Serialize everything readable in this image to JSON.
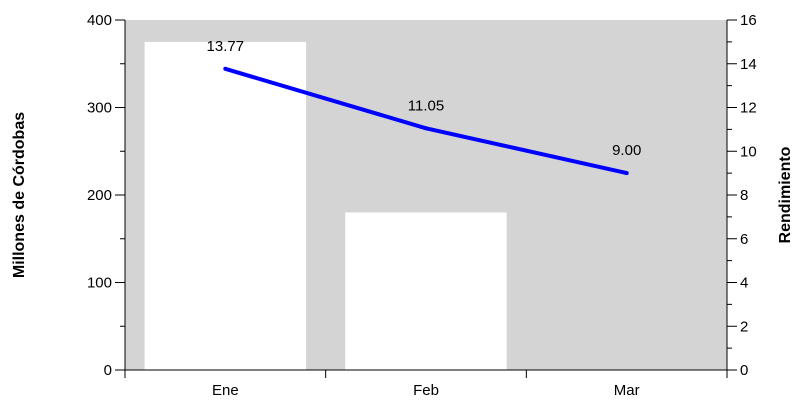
{
  "chart_data": {
    "type": "bar+line",
    "categories": [
      "Ene",
      "Feb",
      "Mar"
    ],
    "bar_series": {
      "values": [
        375,
        180,
        0
      ],
      "color": "#ffffff",
      "axis": "left"
    },
    "line_series": {
      "values": [
        13.77,
        11.05,
        9.0
      ],
      "labels": [
        "13.77",
        "11.05",
        "9.00"
      ],
      "color": "#0000ff",
      "axis": "right"
    },
    "y_left": {
      "label": "Millones de Córdobas",
      "ylim": [
        0,
        400
      ],
      "ticks": [
        0,
        100,
        200,
        300,
        400
      ],
      "minor_step": 50
    },
    "y_right": {
      "label": "Rendimiento",
      "ylim": [
        0,
        16
      ],
      "ticks": [
        0,
        2,
        4,
        6,
        8,
        10,
        12,
        14,
        16
      ],
      "minor_step": 1
    },
    "plot_background": "#d4d4d4",
    "grid": false,
    "legend": false
  }
}
